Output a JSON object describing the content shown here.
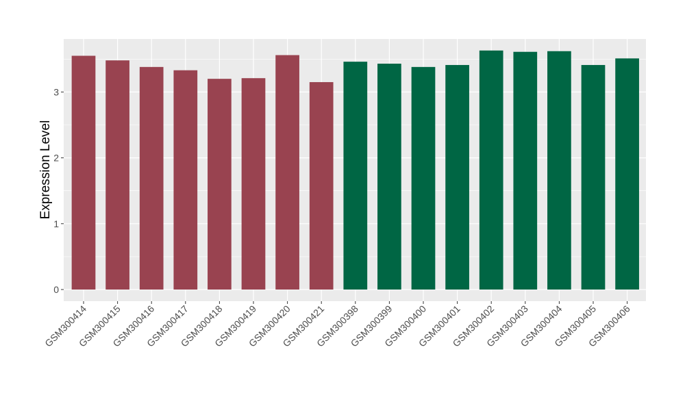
{
  "chart_data": {
    "type": "bar",
    "title": "",
    "xlabel": "",
    "ylabel": "Expression Level",
    "ylim": [
      0,
      3.8
    ],
    "yticks": [
      0,
      1,
      2,
      3
    ],
    "grid": true,
    "legend": "none",
    "categories": [
      "GSM300414",
      "GSM300415",
      "GSM300416",
      "GSM300417",
      "GSM300418",
      "GSM300419",
      "GSM300420",
      "GSM300421",
      "GSM300398",
      "GSM300399",
      "GSM300400",
      "GSM300401",
      "GSM300402",
      "GSM300403",
      "GSM300404",
      "GSM300405",
      "GSM300406"
    ],
    "values": [
      3.55,
      3.48,
      3.38,
      3.33,
      3.2,
      3.21,
      3.56,
      3.15,
      3.46,
      3.43,
      3.38,
      3.41,
      3.63,
      3.61,
      3.62,
      3.41,
      3.51
    ],
    "bar_colors": [
      "#994350",
      "#994350",
      "#994350",
      "#994350",
      "#994350",
      "#994350",
      "#994350",
      "#994350",
      "#006644",
      "#006644",
      "#006644",
      "#006644",
      "#006644",
      "#006644",
      "#006644",
      "#006644",
      "#006644"
    ],
    "panel_background": "#ebebeb",
    "grid_color": "#ffffff"
  }
}
